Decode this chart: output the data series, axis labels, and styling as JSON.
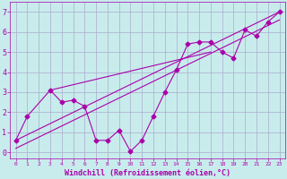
{
  "xlabel": "Windchill (Refroidissement éolien,°C)",
  "bg_color": "#c8ecec",
  "line_color": "#aa00aa",
  "grid_color": "#aaaacc",
  "xlim": [
    -0.5,
    23.5
  ],
  "ylim": [
    -0.3,
    7.5
  ],
  "xticks": [
    0,
    1,
    2,
    3,
    4,
    5,
    6,
    7,
    8,
    9,
    10,
    11,
    12,
    13,
    14,
    15,
    16,
    17,
    18,
    19,
    20,
    21,
    22,
    23
  ],
  "yticks": [
    0,
    1,
    2,
    3,
    4,
    5,
    6,
    7
  ],
  "s1_x": [
    0,
    1,
    3,
    4,
    5,
    6,
    7,
    8,
    9,
    10,
    11,
    12,
    13,
    14,
    15,
    16,
    17,
    18,
    19,
    20,
    21,
    22,
    23
  ],
  "s1_y": [
    0.6,
    1.8,
    3.1,
    2.5,
    2.6,
    2.3,
    0.6,
    0.6,
    1.1,
    0.05,
    0.6,
    1.8,
    3.0,
    4.1,
    5.4,
    5.5,
    5.5,
    5.0,
    4.7,
    6.1,
    5.8,
    6.5,
    7.0
  ],
  "trend1_x": [
    0,
    23
  ],
  "trend1_y": [
    0.6,
    7.0
  ],
  "trend2_x": [
    3,
    17
  ],
  "trend2_y": [
    3.1,
    5.0
  ],
  "trend3_x": [
    0,
    23
  ],
  "trend3_y": [
    0.2,
    6.6
  ],
  "xlabel_color": "#aa00aa",
  "tick_color": "#aa00aa"
}
